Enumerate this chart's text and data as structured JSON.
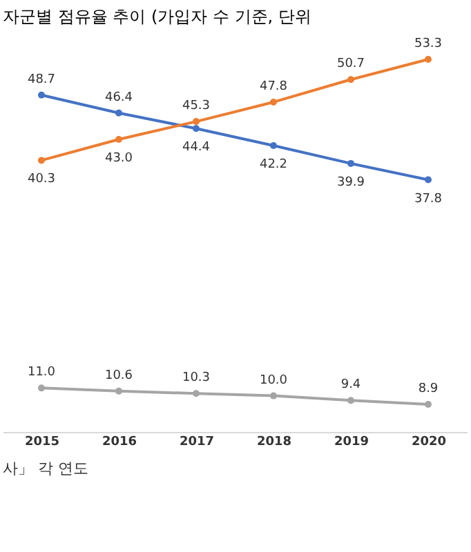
{
  "chart_data": {
    "type": "line",
    "title": "자군별 점유율 추이 (가입자 수 기준, 단위",
    "categories": [
      "2015",
      "2016",
      "2017",
      "2018",
      "2019",
      "2020"
    ],
    "series": [
      {
        "color": "#4472c4",
        "values": [
          48.7,
          46.4,
          44.4,
          42.2,
          39.9,
          37.8
        ],
        "value_labels": [
          "48.7",
          "46.4",
          "44.4",
          "42.2",
          "39.9",
          "37.8"
        ]
      },
      {
        "color": "#ed7d31",
        "values": [
          40.3,
          43.0,
          45.3,
          47.8,
          50.7,
          53.3
        ],
        "value_labels": [
          "40.3",
          "43.0",
          "45.3",
          "47.8",
          "50.7",
          "53.3"
        ]
      },
      {
        "color": "#a5a5a5",
        "values": [
          11.0,
          10.6,
          10.3,
          10.0,
          9.4,
          8.9
        ],
        "value_labels": [
          "11.0",
          "10.6",
          "10.3",
          "10.0",
          "9.4",
          "8.9"
        ]
      }
    ],
    "marker": "circle",
    "grid": false,
    "annotations": [
      "사」 각 연도"
    ]
  }
}
